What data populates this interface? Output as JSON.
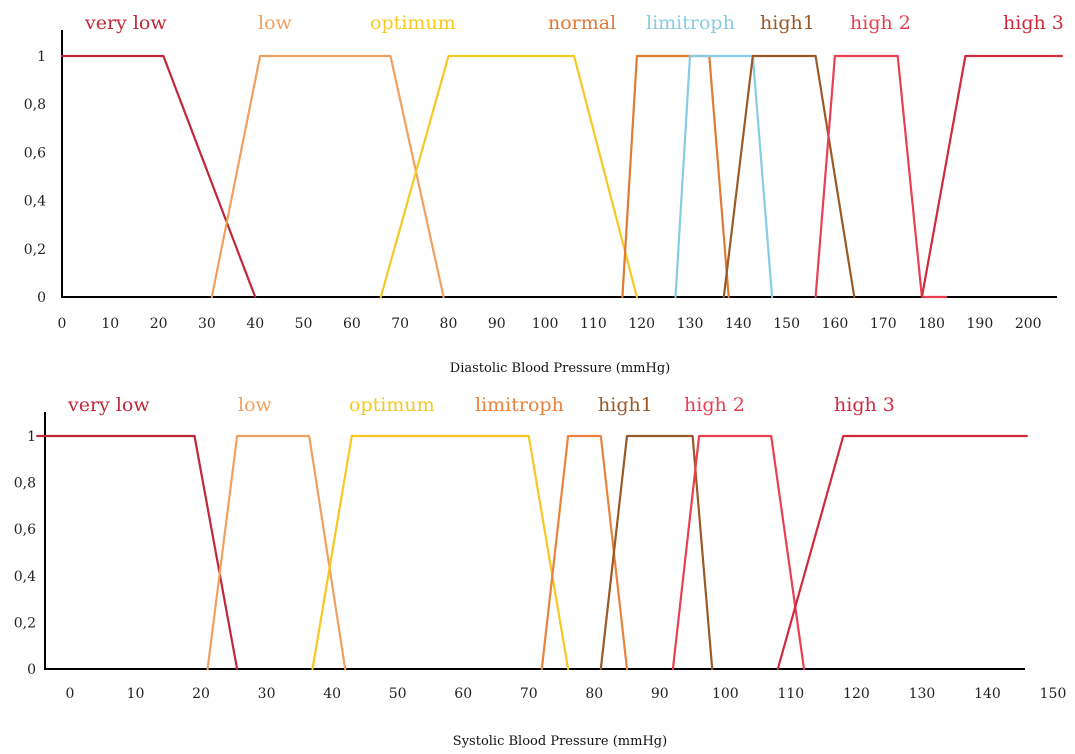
{
  "colors": {
    "very_low": "#c0283a",
    "low": "#f0a060",
    "optimum": "#f6c824",
    "normal": "#e07b35",
    "limitroph_diastolic": "#88cce4",
    "limitroph_systolic": "#e8823c",
    "high1": "#9a5a28",
    "high2": "#e84052",
    "high3": "#d12a3e",
    "axis": "#000000"
  },
  "chart_data": [
    {
      "type": "line",
      "chart_kind": "fuzzy membership functions",
      "title": "",
      "xlabel": "Diastolic Blood Pressure (mmHg)",
      "ylabel": "",
      "xlim": [
        0,
        207
      ],
      "ylim": [
        0,
        1
      ],
      "x_ticks": [
        "0",
        "10",
        "20",
        "30",
        "40",
        "50",
        "60",
        "70",
        "80",
        "90",
        "100",
        "110",
        "120",
        "130",
        "140",
        "150",
        "160",
        "170",
        "180",
        "190",
        "200"
      ],
      "y_ticks": [
        "0",
        "0,2",
        "0,4",
        "0,6",
        "0,8",
        "1"
      ],
      "grid": false,
      "series": [
        {
          "name": "very low",
          "color_key": "very_low",
          "x": [
            0,
            21,
            40
          ],
          "y": [
            1,
            1,
            0
          ]
        },
        {
          "name": "low",
          "color_key": "low",
          "x": [
            31,
            41,
            68,
            79
          ],
          "y": [
            0,
            1,
            1,
            0
          ]
        },
        {
          "name": "optimum",
          "color_key": "optimum",
          "x": [
            66,
            80,
            106,
            119
          ],
          "y": [
            0,
            1,
            1,
            0
          ]
        },
        {
          "name": "normal",
          "color_key": "normal",
          "x": [
            116,
            119,
            134,
            138
          ],
          "y": [
            0,
            1,
            1,
            0
          ]
        },
        {
          "name": "limitroph",
          "color_key": "limitroph_diastolic",
          "x": [
            127,
            130,
            143,
            147
          ],
          "y": [
            0,
            1,
            1,
            0
          ]
        },
        {
          "name": "high1",
          "color_key": "high1",
          "x": [
            137,
            143,
            156,
            164
          ],
          "y": [
            0,
            1,
            1,
            0
          ]
        },
        {
          "name": "high 2",
          "color_key": "high2",
          "x": [
            156,
            160,
            173,
            178,
            183
          ],
          "y": [
            0,
            1,
            1,
            0,
            0
          ]
        },
        {
          "name": "high 3",
          "color_key": "high3",
          "x": [
            178,
            187,
            207
          ],
          "y": [
            0,
            1,
            1
          ]
        }
      ]
    },
    {
      "type": "line",
      "chart_kind": "fuzzy membership functions",
      "title": "",
      "xlabel": "Systolic Blood Pressure (mmHg)",
      "ylabel": "",
      "xlim": [
        -5,
        150
      ],
      "ylim": [
        0,
        1
      ],
      "x_ticks": [
        "0",
        "10",
        "20",
        "30",
        "40",
        "50",
        "60",
        "70",
        "80",
        "90",
        "100",
        "110",
        "120",
        "130",
        "140",
        "150"
      ],
      "y_ticks": [
        "0",
        "0,2",
        "0,4",
        "0,6",
        "0,8",
        "1"
      ],
      "grid": false,
      "series": [
        {
          "name": "very low",
          "color_key": "very_low",
          "x": [
            -5,
            19,
            25.5
          ],
          "y": [
            1,
            1,
            0
          ]
        },
        {
          "name": "low",
          "color_key": "low",
          "x": [
            21,
            25.5,
            36.5,
            42
          ],
          "y": [
            0,
            1,
            1,
            0
          ]
        },
        {
          "name": "optimum",
          "color_key": "optimum",
          "x": [
            37,
            43,
            70,
            76
          ],
          "y": [
            0,
            1,
            1,
            0
          ]
        },
        {
          "name": "limitroph",
          "color_key": "limitroph_systolic",
          "x": [
            72,
            76,
            81,
            85
          ],
          "y": [
            0,
            1,
            1,
            0
          ]
        },
        {
          "name": "high1",
          "color_key": "high1",
          "x": [
            81,
            85,
            95,
            98
          ],
          "y": [
            0,
            1,
            1,
            0
          ]
        },
        {
          "name": "high 2",
          "color_key": "high2",
          "x": [
            92,
            96,
            107,
            112
          ],
          "y": [
            0,
            1,
            1,
            0
          ]
        },
        {
          "name": "high 3",
          "color_key": "high3",
          "x": [
            108,
            118,
            146
          ],
          "y": [
            0,
            1,
            1
          ]
        }
      ]
    }
  ]
}
